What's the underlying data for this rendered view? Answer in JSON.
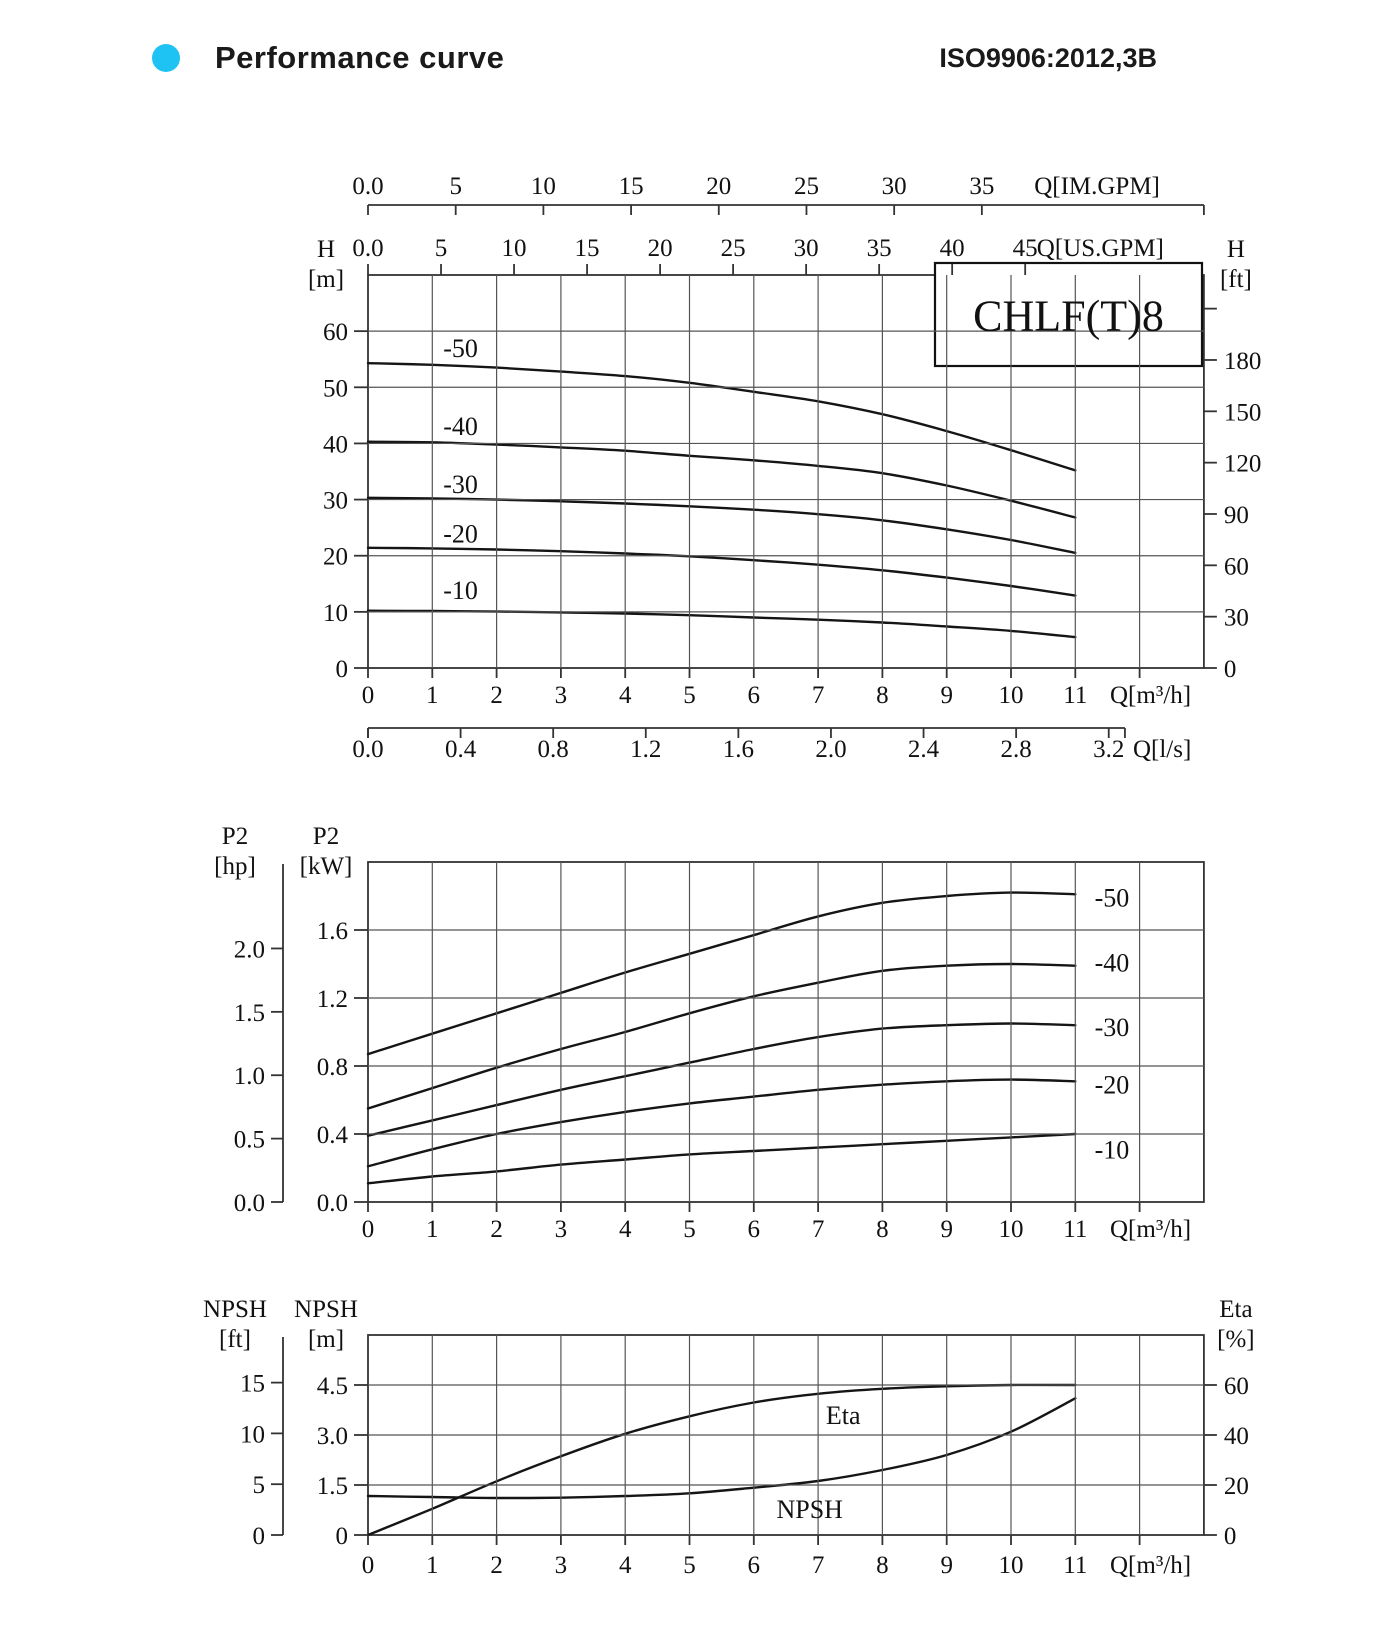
{
  "header": {
    "title": "Performance curve",
    "standard": "ISO9906:2012,3B",
    "bullet_color": "#1fc3f3"
  },
  "colors": {
    "grid": "#555555",
    "border": "#333333",
    "curve": "#151515",
    "text": "#111111"
  },
  "chart_data": [
    {
      "id": "head",
      "type": "line",
      "title": "CHLF(T)8",
      "x_axis": {
        "unit_label": "Q[m³/h]",
        "tick_labels": [
          "0",
          "1",
          "2",
          "3",
          "4",
          "5",
          "6",
          "7",
          "8",
          "9",
          "10",
          "11"
        ],
        "tick_values": [
          0,
          1,
          2,
          3,
          4,
          5,
          6,
          7,
          8,
          9,
          10,
          11
        ],
        "range": [
          0,
          13
        ],
        "grid_step": 1
      },
      "x_top_axes": [
        {
          "name": "im_gpm",
          "unit_label": "Q[IM.GPM]",
          "tick_labels": [
            "0.0",
            "5",
            "10",
            "15",
            "20",
            "25",
            "30",
            "35"
          ],
          "tick_values": [
            0,
            5,
            10,
            15,
            20,
            25,
            30,
            35
          ],
          "m3h_per_unit": 0.2727655
        },
        {
          "name": "us_gpm",
          "unit_label": "Q[US.GPM]",
          "tick_labels": [
            "0.0",
            "5",
            "10",
            "15",
            "20",
            "25",
            "30",
            "35",
            "40",
            "45"
          ],
          "tick_values": [
            0,
            5,
            10,
            15,
            20,
            25,
            30,
            35,
            40,
            45
          ],
          "m3h_per_unit": 0.2271247
        }
      ],
      "x_bottom_axis": {
        "name": "l_s",
        "unit_label": "Q[l/s]",
        "tick_labels": [
          "0.0",
          "0.4",
          "0.8",
          "1.2",
          "1.6",
          "2.0",
          "2.4",
          "2.8",
          "3.2"
        ],
        "tick_values": [
          0,
          0.4,
          0.8,
          1.2,
          1.6,
          2.0,
          2.4,
          2.8,
          3.2
        ],
        "m3h_per_unit": 3.6
      },
      "y_left": {
        "label_lines": [
          "H",
          "[m]"
        ],
        "tick_labels": [
          "0",
          "10",
          "20",
          "30",
          "40",
          "50",
          "60"
        ],
        "tick_values": [
          0,
          10,
          20,
          30,
          40,
          50,
          60
        ],
        "range": [
          0,
          70
        ]
      },
      "y_right": {
        "label_lines": [
          "H",
          "[ft]"
        ],
        "tick_labels": [
          "0",
          "30",
          "60",
          "90",
          "120",
          "150",
          "180"
        ],
        "tick_values": [
          0,
          30,
          60,
          90,
          120,
          150,
          180
        ],
        "unlabeled_tick_values": [
          210
        ],
        "m_per_unit": 0.3048
      },
      "series": [
        {
          "name": "-50",
          "label_pos": [
            1.17,
            57.0
          ],
          "points": [
            [
              0,
              54.3
            ],
            [
              1,
              54.0
            ],
            [
              2,
              53.5
            ],
            [
              3,
              52.8
            ],
            [
              4,
              52.0
            ],
            [
              5,
              50.8
            ],
            [
              6,
              49.2
            ],
            [
              7,
              47.5
            ],
            [
              8,
              45.2
            ],
            [
              9,
              42.2
            ],
            [
              10,
              38.8
            ],
            [
              11,
              35.2
            ]
          ]
        },
        {
          "name": "-40",
          "label_pos": [
            1.17,
            43.1
          ],
          "points": [
            [
              0,
              40.3
            ],
            [
              1,
              40.2
            ],
            [
              2,
              39.8
            ],
            [
              3,
              39.3
            ],
            [
              4,
              38.7
            ],
            [
              5,
              37.8
            ],
            [
              6,
              37.0
            ],
            [
              7,
              36.0
            ],
            [
              8,
              34.7
            ],
            [
              9,
              32.5
            ],
            [
              10,
              29.8
            ],
            [
              11,
              26.8
            ]
          ]
        },
        {
          "name": "-30",
          "label_pos": [
            1.17,
            32.8
          ],
          "points": [
            [
              0,
              30.3
            ],
            [
              1,
              30.2
            ],
            [
              2,
              30.0
            ],
            [
              3,
              29.7
            ],
            [
              4,
              29.3
            ],
            [
              5,
              28.8
            ],
            [
              6,
              28.2
            ],
            [
              7,
              27.4
            ],
            [
              8,
              26.3
            ],
            [
              9,
              24.7
            ],
            [
              10,
              22.8
            ],
            [
              11,
              20.5
            ]
          ]
        },
        {
          "name": "-20",
          "label_pos": [
            1.17,
            24.0
          ],
          "points": [
            [
              0,
              21.4
            ],
            [
              1,
              21.3
            ],
            [
              2,
              21.1
            ],
            [
              3,
              20.8
            ],
            [
              4,
              20.4
            ],
            [
              5,
              19.9
            ],
            [
              6,
              19.2
            ],
            [
              7,
              18.4
            ],
            [
              8,
              17.4
            ],
            [
              9,
              16.1
            ],
            [
              10,
              14.6
            ],
            [
              11,
              12.9
            ]
          ]
        },
        {
          "name": "-10",
          "label_pos": [
            1.17,
            13.9
          ],
          "points": [
            [
              0,
              10.2
            ],
            [
              1,
              10.15
            ],
            [
              2,
              10.05
            ],
            [
              3,
              9.9
            ],
            [
              4,
              9.7
            ],
            [
              5,
              9.4
            ],
            [
              6,
              9.0
            ],
            [
              7,
              8.6
            ],
            [
              8,
              8.1
            ],
            [
              9,
              7.4
            ],
            [
              10,
              6.6
            ],
            [
              11,
              5.5
            ]
          ]
        }
      ]
    },
    {
      "id": "power",
      "type": "line",
      "x_axis": {
        "unit_label": "Q[m³/h]",
        "tick_labels": [
          "0",
          "1",
          "2",
          "3",
          "4",
          "5",
          "6",
          "7",
          "8",
          "9",
          "10",
          "11"
        ],
        "tick_values": [
          0,
          1,
          2,
          3,
          4,
          5,
          6,
          7,
          8,
          9,
          10,
          11
        ],
        "range": [
          0,
          13
        ],
        "grid_step": 1
      },
      "y_left": {
        "label_lines": [
          "P2",
          "[kW]"
        ],
        "tick_labels": [
          "0.0",
          "0.4",
          "0.8",
          "1.2",
          "1.6"
        ],
        "tick_values": [
          0,
          0.4,
          0.8,
          1.2,
          1.6
        ],
        "range": [
          0,
          2.0
        ]
      },
      "y_left_outer": {
        "label_lines": [
          "P2",
          "[hp]"
        ],
        "tick_labels": [
          "0.0",
          "0.5",
          "1.0",
          "1.5",
          "2.0"
        ],
        "tick_values": [
          0,
          0.5,
          1.0,
          1.5,
          2.0
        ],
        "kw_per_unit": 0.7457
      },
      "series": [
        {
          "name": "-50",
          "label_pos": [
            11.3,
            1.79
          ],
          "points": [
            [
              0,
              0.87
            ],
            [
              1,
              0.99
            ],
            [
              2,
              1.11
            ],
            [
              3,
              1.23
            ],
            [
              4,
              1.35
            ],
            [
              5,
              1.46
            ],
            [
              6,
              1.57
            ],
            [
              7,
              1.68
            ],
            [
              8,
              1.76
            ],
            [
              9,
              1.8
            ],
            [
              10,
              1.82
            ],
            [
              11,
              1.81
            ]
          ]
        },
        {
          "name": "-40",
          "label_pos": [
            11.3,
            1.41
          ],
          "points": [
            [
              0,
              0.55
            ],
            [
              1,
              0.67
            ],
            [
              2,
              0.79
            ],
            [
              3,
              0.9
            ],
            [
              4,
              1.0
            ],
            [
              5,
              1.11
            ],
            [
              6,
              1.21
            ],
            [
              7,
              1.29
            ],
            [
              8,
              1.36
            ],
            [
              9,
              1.39
            ],
            [
              10,
              1.4
            ],
            [
              11,
              1.39
            ]
          ]
        },
        {
          "name": "-30",
          "label_pos": [
            11.3,
            1.03
          ],
          "points": [
            [
              0,
              0.39
            ],
            [
              1,
              0.48
            ],
            [
              2,
              0.57
            ],
            [
              3,
              0.66
            ],
            [
              4,
              0.74
            ],
            [
              5,
              0.82
            ],
            [
              6,
              0.9
            ],
            [
              7,
              0.97
            ],
            [
              8,
              1.02
            ],
            [
              9,
              1.04
            ],
            [
              10,
              1.05
            ],
            [
              11,
              1.04
            ]
          ]
        },
        {
          "name": "-20",
          "label_pos": [
            11.3,
            0.69
          ],
          "points": [
            [
              0,
              0.21
            ],
            [
              1,
              0.31
            ],
            [
              2,
              0.4
            ],
            [
              3,
              0.47
            ],
            [
              4,
              0.53
            ],
            [
              5,
              0.58
            ],
            [
              6,
              0.62
            ],
            [
              7,
              0.66
            ],
            [
              8,
              0.69
            ],
            [
              9,
              0.71
            ],
            [
              10,
              0.72
            ],
            [
              11,
              0.71
            ]
          ]
        },
        {
          "name": "-10",
          "label_pos": [
            11.3,
            0.31
          ],
          "points": [
            [
              0,
              0.11
            ],
            [
              1,
              0.15
            ],
            [
              2,
              0.18
            ],
            [
              3,
              0.22
            ],
            [
              4,
              0.25
            ],
            [
              5,
              0.28
            ],
            [
              6,
              0.3
            ],
            [
              7,
              0.32
            ],
            [
              8,
              0.34
            ],
            [
              9,
              0.36
            ],
            [
              10,
              0.38
            ],
            [
              11,
              0.4
            ]
          ]
        }
      ]
    },
    {
      "id": "npsh",
      "type": "line",
      "x_axis": {
        "unit_label": "Q[m³/h]",
        "tick_labels": [
          "0",
          "1",
          "2",
          "3",
          "4",
          "5",
          "6",
          "7",
          "8",
          "9",
          "10",
          "11"
        ],
        "tick_values": [
          0,
          1,
          2,
          3,
          4,
          5,
          6,
          7,
          8,
          9,
          10,
          11
        ],
        "range": [
          0,
          13
        ],
        "grid_step": 1
      },
      "y_left": {
        "label_lines": [
          "NPSH",
          "[m]"
        ],
        "tick_labels": [
          "0",
          "1.5",
          "3.0",
          "4.5"
        ],
        "tick_values": [
          0,
          1.5,
          3.0,
          4.5
        ],
        "range": [
          0,
          6
        ]
      },
      "y_left_outer": {
        "label_lines": [
          "NPSH",
          "[ft]"
        ],
        "tick_labels": [
          "0",
          "5",
          "10",
          "15"
        ],
        "tick_values": [
          0,
          5,
          10,
          15
        ],
        "m_per_unit": 0.3048
      },
      "y_right": {
        "label_lines": [
          "Eta",
          "[%]"
        ],
        "tick_labels": [
          "0",
          "20",
          "40",
          "60"
        ],
        "tick_values": [
          0,
          20,
          40,
          60
        ],
        "range": [
          0,
          80
        ]
      },
      "series": [
        {
          "name": "Eta",
          "axis": "right",
          "label_pos": [
            7.39,
            48.0
          ],
          "points": [
            [
              0,
              0
            ],
            [
              1,
              10.5
            ],
            [
              2,
              21.5
            ],
            [
              3,
              31.5
            ],
            [
              4,
              40.5
            ],
            [
              5,
              47.5
            ],
            [
              6,
              53
            ],
            [
              7,
              56.5
            ],
            [
              8,
              58.5
            ],
            [
              9,
              59.5
            ],
            [
              10,
              60
            ],
            [
              11,
              60
            ]
          ]
        },
        {
          "name": "NPSH",
          "axis": "left",
          "label_pos": [
            6.87,
            0.78
          ],
          "points": [
            [
              0,
              1.17
            ],
            [
              1,
              1.14
            ],
            [
              2,
              1.11
            ],
            [
              3,
              1.12
            ],
            [
              4,
              1.17
            ],
            [
              5,
              1.25
            ],
            [
              6,
              1.42
            ],
            [
              7,
              1.62
            ],
            [
              8,
              1.95
            ],
            [
              9,
              2.4
            ],
            [
              10,
              3.1
            ],
            [
              11,
              4.1
            ]
          ]
        }
      ]
    }
  ]
}
